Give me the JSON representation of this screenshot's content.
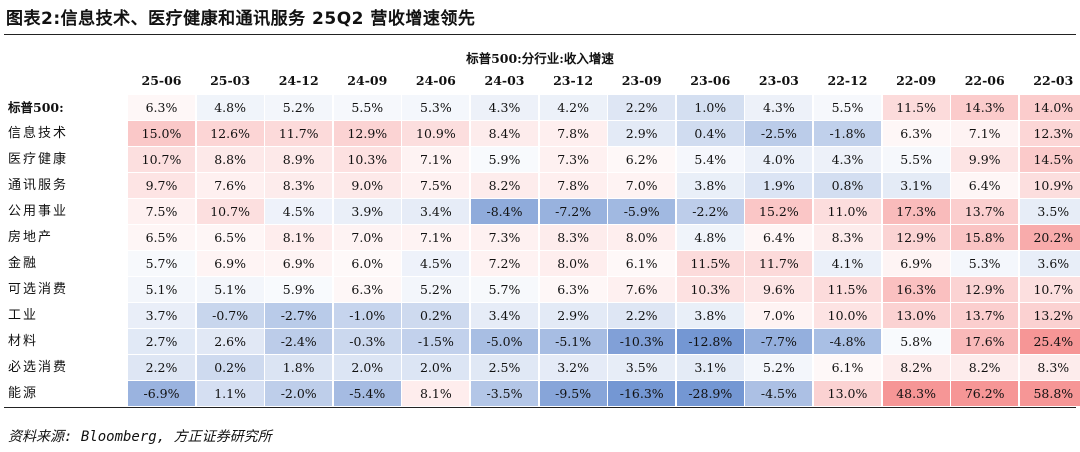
{
  "figure_title": "图表2:信息技术、医疗健康和通讯服务 25Q2 营收增速领先",
  "table_title": "标普500:分行业:收入增速",
  "columns": [
    "25-06",
    "25-03",
    "24-12",
    "24-09",
    "24-06",
    "24-03",
    "23-12",
    "23-09",
    "23-06",
    "23-03",
    "22-12",
    "22-09",
    "22-06",
    "22-03"
  ],
  "rows": [
    {
      "label": "标普500:",
      "values": [
        "6.3%",
        "4.8%",
        "5.2%",
        "5.5%",
        "5.3%",
        "4.3%",
        "4.2%",
        "2.2%",
        "1.0%",
        "4.3%",
        "5.5%",
        "11.5%",
        "14.3%",
        "14.0%"
      ]
    },
    {
      "label": "信息技术",
      "values": [
        "15.0%",
        "12.6%",
        "11.7%",
        "12.9%",
        "10.9%",
        "8.4%",
        "7.8%",
        "2.9%",
        "0.4%",
        "-2.5%",
        "-1.8%",
        "6.3%",
        "7.1%",
        "12.3%"
      ]
    },
    {
      "label": "医疗健康",
      "values": [
        "10.7%",
        "8.8%",
        "8.9%",
        "10.3%",
        "7.1%",
        "5.9%",
        "7.3%",
        "6.2%",
        "5.4%",
        "4.0%",
        "4.3%",
        "5.5%",
        "9.9%",
        "14.5%"
      ]
    },
    {
      "label": "通讯服务",
      "values": [
        "9.7%",
        "7.6%",
        "8.3%",
        "9.0%",
        "7.5%",
        "8.2%",
        "7.8%",
        "7.0%",
        "3.8%",
        "1.9%",
        "0.8%",
        "3.1%",
        "6.4%",
        "10.9%"
      ]
    },
    {
      "label": "公用事业",
      "values": [
        "7.5%",
        "10.7%",
        "4.5%",
        "3.9%",
        "3.4%",
        "-8.4%",
        "-7.2%",
        "-5.9%",
        "-2.2%",
        "15.2%",
        "11.0%",
        "17.3%",
        "13.7%",
        "3.5%"
      ]
    },
    {
      "label": "房地产",
      "values": [
        "6.5%",
        "6.5%",
        "8.1%",
        "7.0%",
        "7.1%",
        "7.3%",
        "8.3%",
        "8.0%",
        "4.8%",
        "6.4%",
        "8.3%",
        "12.9%",
        "15.8%",
        "20.2%"
      ]
    },
    {
      "label": "金融",
      "values": [
        "5.7%",
        "6.9%",
        "6.9%",
        "6.0%",
        "4.5%",
        "7.2%",
        "8.0%",
        "6.1%",
        "11.5%",
        "11.7%",
        "4.1%",
        "6.9%",
        "5.3%",
        "3.6%"
      ]
    },
    {
      "label": "可选消费",
      "values": [
        "5.1%",
        "5.1%",
        "5.9%",
        "6.3%",
        "5.2%",
        "5.7%",
        "6.3%",
        "7.6%",
        "10.3%",
        "9.6%",
        "11.5%",
        "16.3%",
        "12.9%",
        "10.7%"
      ]
    },
    {
      "label": "工业",
      "values": [
        "3.7%",
        "-0.7%",
        "-2.7%",
        "-1.0%",
        "0.2%",
        "3.4%",
        "2.9%",
        "2.2%",
        "3.8%",
        "7.0%",
        "10.0%",
        "13.0%",
        "13.7%",
        "13.2%"
      ]
    },
    {
      "label": "材料",
      "values": [
        "2.7%",
        "2.6%",
        "-2.4%",
        "-0.3%",
        "-1.5%",
        "-5.0%",
        "-5.1%",
        "-10.3%",
        "-12.8%",
        "-7.7%",
        "-4.8%",
        "5.8%",
        "17.6%",
        "25.4%"
      ]
    },
    {
      "label": "必选消费",
      "values": [
        "2.2%",
        "0.2%",
        "1.8%",
        "2.0%",
        "2.0%",
        "2.5%",
        "3.2%",
        "3.5%",
        "3.1%",
        "5.2%",
        "6.1%",
        "8.2%",
        "8.2%",
        "8.3%"
      ]
    },
    {
      "label": "能源",
      "values": [
        "-6.9%",
        "1.1%",
        "-2.0%",
        "-5.4%",
        "8.1%",
        "-3.5%",
        "-9.5%",
        "-16.3%",
        "-28.9%",
        "-4.5%",
        "13.0%",
        "48.3%",
        "76.2%",
        "58.8%"
      ]
    }
  ],
  "source": "资料来源: Bloomberg, 方正证券研究所"
}
